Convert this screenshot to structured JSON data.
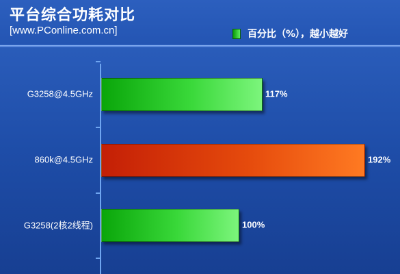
{
  "chart_data": {
    "type": "bar",
    "orientation": "horizontal",
    "title": "平台综合功耗对比",
    "subtitle": "[www.PConline.com.cn]",
    "categories": [
      "G3258@4.5GHz",
      "860k@4.5GHz",
      "G3258(2核2线程)"
    ],
    "series": [
      {
        "name": "百分比（%），越小越好",
        "values": [
          117,
          192,
          100
        ]
      }
    ],
    "value_labels": [
      "117%",
      "192%",
      "100%"
    ],
    "bar_colors": [
      "green",
      "orange",
      "green"
    ],
    "xlim": [
      0,
      200
    ],
    "grid": false,
    "legend": "top-right"
  },
  "colors": {
    "background": "#1e4da8",
    "green_bar": "#39d839",
    "orange_bar": "#e54a0c",
    "axis": "#6fa5f0"
  }
}
